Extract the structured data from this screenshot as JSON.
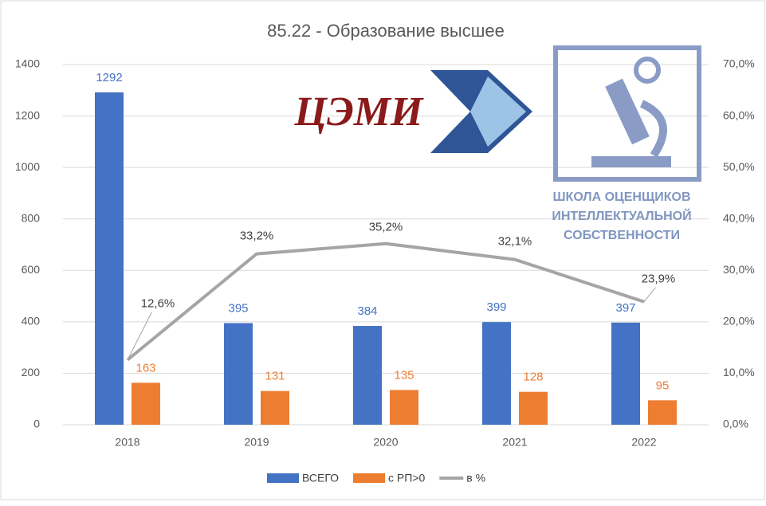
{
  "chart_data": {
    "type": "bar_line",
    "title": "85.22 - Образование высшее",
    "categories": [
      "2018",
      "2019",
      "2020",
      "2021",
      "2022"
    ],
    "series": [
      {
        "name": "ВСЕГО",
        "color": "#4472c4",
        "type": "bar",
        "values": [
          1292,
          395,
          384,
          399,
          397
        ]
      },
      {
        "name": "с РП>0",
        "color": "#ed7d31",
        "type": "bar",
        "values": [
          163,
          131,
          135,
          128,
          95
        ]
      },
      {
        "name": "в %",
        "color": "#a5a5a5",
        "type": "line",
        "axis": "y2",
        "values": [
          12.6,
          33.2,
          35.2,
          32.1,
          23.9
        ],
        "value_labels": [
          "12,6%",
          "33,2%",
          "35,2%",
          "32,1%",
          "23,9%"
        ]
      }
    ],
    "ylim": [
      0,
      1400
    ],
    "yticks": [
      0,
      200,
      400,
      600,
      800,
      1000,
      1200,
      1400
    ],
    "y2lim": [
      0,
      70
    ],
    "y2ticks": [
      {
        "value": 0,
        "label": "0,0%"
      },
      {
        "value": 10,
        "label": "10,0%"
      },
      {
        "value": 20,
        "label": "20,0%"
      },
      {
        "value": 30,
        "label": "30,0%"
      },
      {
        "value": 40,
        "label": "40,0%"
      },
      {
        "value": 50,
        "label": "50,0%"
      },
      {
        "value": 60,
        "label": "60,0%"
      },
      {
        "value": 70,
        "label": "70,0%"
      }
    ],
    "grid": true,
    "legend": "bottom"
  },
  "logos": {
    "left": "ЦЭМИ",
    "right": [
      "ШКОЛА ОЦЕНЩИКОВ",
      "ИНТЕЛЛЕКТУАЛЬНОЙ",
      "СОБСТВЕННОСТИ"
    ]
  }
}
